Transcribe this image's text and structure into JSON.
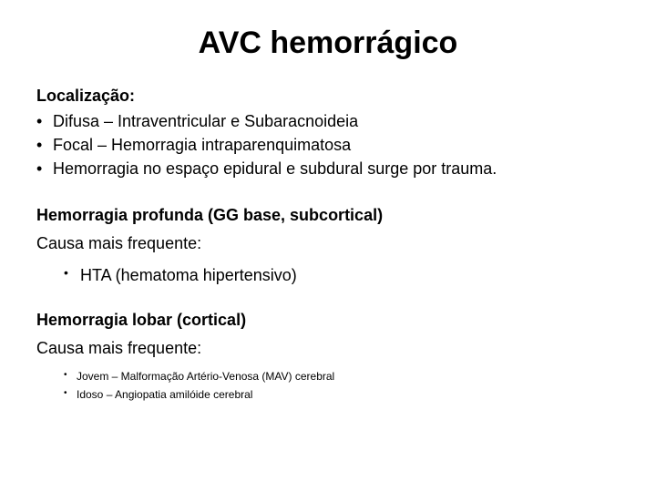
{
  "title": "AVC hemorrágico",
  "section1": {
    "heading": "Localização:",
    "bullets": [
      "Difusa – Intraventricular e Subaracnoideia",
      "Focal – Hemorragia intraparenquimatosa",
      "Hemorragia no espaço epidural e subdural surge por trauma."
    ]
  },
  "section2": {
    "heading": "Hemorragia profunda (GG base, subcortical)",
    "subline": "Causa mais frequente:",
    "bullets": [
      "HTA  (hematoma hipertensivo)"
    ]
  },
  "section3": {
    "heading": "Hemorragia lobar (cortical)",
    "subline": "Causa mais frequente:",
    "bullets": [
      "Jovem – Malformação Artério-Venosa (MAV) cerebral",
      "Idoso – Angiopatia amilóide cerebral"
    ]
  },
  "colors": {
    "background": "#ffffff",
    "text": "#000000"
  },
  "typography": {
    "title_fontsize": 34,
    "body_fontsize": 18,
    "small_fontsize": 12,
    "font_family": "Arial"
  }
}
